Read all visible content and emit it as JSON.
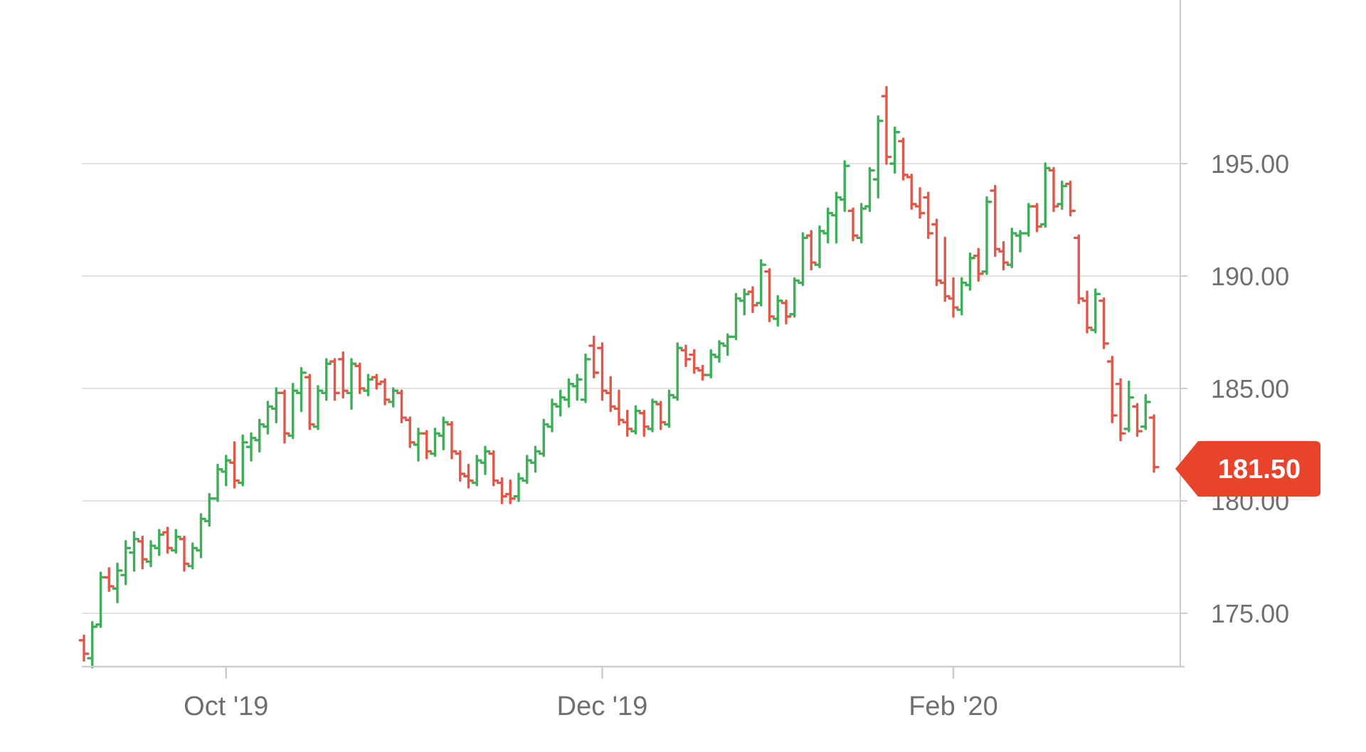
{
  "chart_data": {
    "type": "ohlc",
    "title": "",
    "description": "Daily OHLC price bar chart, Sep 2019 - Mar 2020, ending at 181.50",
    "colors": {
      "up": "#3eae59",
      "down": "#e0584a",
      "grid": "#e3e3e3",
      "axis": "#cccccc",
      "label": "#6f6f6f",
      "background": "#ffffff",
      "badge": "#e8432b",
      "badge_text": "#ffffff"
    },
    "y_axis": {
      "tick_labels": [
        "195.00",
        "190.00",
        "185.00",
        "180.00",
        "175.00"
      ],
      "tick_values": [
        195,
        190,
        185,
        180,
        175
      ],
      "visible_min": 172.5,
      "visible_max": 198.4,
      "grid": true,
      "position": "right"
    },
    "x_axis": {
      "tick_labels": [
        "Oct '19",
        "Dec '19",
        "Feb '20"
      ],
      "tick_bar_indices": [
        17,
        62,
        104
      ]
    },
    "badge": {
      "label": "181.50",
      "value": 181.5
    },
    "series": [
      {
        "name": "price",
        "bars_format": [
          "open",
          "high",
          "low",
          "close"
        ],
        "bars": [
          [
            173.8,
            174.0,
            172.9,
            173.2
          ],
          [
            173.0,
            174.6,
            172.6,
            174.4
          ],
          [
            174.5,
            176.8,
            174.4,
            176.6
          ],
          [
            176.6,
            177.0,
            176.0,
            176.2
          ],
          [
            176.1,
            177.2,
            175.5,
            176.9
          ],
          [
            176.7,
            178.2,
            176.3,
            177.9
          ],
          [
            177.7,
            178.6,
            176.9,
            178.3
          ],
          [
            178.2,
            178.4,
            177.0,
            177.4
          ],
          [
            177.3,
            178.2,
            177.1,
            178.0
          ],
          [
            177.9,
            178.7,
            177.6,
            178.5
          ],
          [
            178.6,
            178.8,
            177.7,
            177.9
          ],
          [
            177.8,
            178.7,
            177.7,
            178.4
          ],
          [
            178.3,
            178.4,
            176.9,
            177.2
          ],
          [
            177.1,
            178.1,
            177.0,
            177.9
          ],
          [
            177.8,
            179.4,
            177.5,
            179.2
          ],
          [
            179.1,
            180.3,
            178.9,
            180.1
          ],
          [
            180.1,
            181.6,
            180.0,
            181.4
          ],
          [
            181.3,
            182.0,
            180.7,
            181.8
          ],
          [
            181.7,
            182.6,
            180.6,
            180.9
          ],
          [
            180.8,
            182.9,
            180.7,
            182.6
          ],
          [
            182.4,
            183.0,
            181.8,
            182.8
          ],
          [
            182.7,
            183.6,
            182.2,
            183.4
          ],
          [
            183.3,
            184.4,
            183.0,
            184.2
          ],
          [
            184.1,
            185.0,
            183.5,
            184.8
          ],
          [
            184.8,
            184.9,
            182.6,
            183.0
          ],
          [
            182.9,
            185.2,
            182.8,
            184.9
          ],
          [
            184.8,
            185.9,
            184.0,
            185.7
          ],
          [
            185.5,
            185.6,
            183.2,
            183.4
          ],
          [
            183.3,
            185.1,
            183.2,
            184.9
          ],
          [
            184.8,
            186.3,
            184.5,
            186.1
          ],
          [
            186.2,
            186.3,
            184.5,
            184.8
          ],
          [
            186.3,
            186.6,
            184.6,
            184.9
          ],
          [
            184.8,
            186.3,
            184.1,
            186.1
          ],
          [
            186.0,
            186.1,
            184.8,
            185.0
          ],
          [
            184.9,
            185.6,
            184.7,
            185.4
          ],
          [
            185.5,
            185.6,
            185.0,
            185.2
          ],
          [
            185.3,
            185.4,
            184.3,
            184.5
          ],
          [
            184.4,
            185.0,
            184.2,
            184.9
          ],
          [
            184.8,
            184.9,
            183.5,
            183.7
          ],
          [
            183.6,
            183.7,
            182.4,
            182.6
          ],
          [
            182.5,
            183.2,
            181.8,
            183.0
          ],
          [
            183.0,
            183.1,
            181.9,
            182.2
          ],
          [
            182.1,
            183.2,
            182.0,
            183.0
          ],
          [
            182.9,
            183.7,
            182.3,
            183.5
          ],
          [
            183.4,
            183.5,
            181.9,
            182.2
          ],
          [
            182.1,
            182.2,
            180.9,
            181.2
          ],
          [
            181.1,
            181.6,
            180.6,
            180.9
          ],
          [
            180.8,
            182.0,
            180.7,
            181.8
          ],
          [
            181.7,
            182.4,
            181.2,
            182.2
          ],
          [
            182.1,
            182.2,
            180.7,
            180.9
          ],
          [
            180.8,
            181.0,
            179.9,
            180.2
          ],
          [
            180.3,
            180.9,
            179.9,
            180.1
          ],
          [
            180.2,
            181.2,
            180.0,
            181.0
          ],
          [
            180.9,
            182.0,
            180.8,
            181.8
          ],
          [
            181.7,
            182.4,
            181.3,
            182.2
          ],
          [
            182.1,
            183.6,
            182.0,
            183.4
          ],
          [
            183.3,
            184.5,
            183.1,
            184.3
          ],
          [
            184.2,
            184.9,
            183.8,
            184.6
          ],
          [
            184.5,
            185.4,
            184.2,
            185.2
          ],
          [
            185.1,
            185.6,
            184.5,
            185.4
          ],
          [
            184.5,
            186.5,
            184.4,
            186.3
          ],
          [
            186.9,
            187.3,
            185.5,
            185.7
          ],
          [
            186.8,
            187.0,
            184.5,
            184.9
          ],
          [
            184.8,
            185.5,
            184.0,
            184.2
          ],
          [
            184.1,
            184.9,
            183.4,
            183.6
          ],
          [
            183.5,
            184.0,
            182.9,
            183.2
          ],
          [
            183.1,
            184.2,
            183.0,
            184.0
          ],
          [
            183.9,
            184.0,
            182.9,
            183.3
          ],
          [
            183.2,
            184.5,
            183.1,
            184.4
          ],
          [
            184.3,
            184.4,
            183.2,
            183.5
          ],
          [
            183.4,
            184.9,
            183.3,
            184.7
          ],
          [
            184.6,
            187.0,
            184.5,
            186.8
          ],
          [
            186.7,
            186.9,
            186.0,
            186.3
          ],
          [
            186.5,
            186.7,
            185.7,
            185.9
          ],
          [
            185.8,
            186.0,
            185.4,
            185.6
          ],
          [
            185.6,
            186.7,
            185.5,
            186.5
          ],
          [
            186.4,
            187.1,
            186.2,
            187.0
          ],
          [
            186.9,
            187.4,
            186.5,
            187.3
          ],
          [
            187.3,
            189.2,
            187.2,
            189.0
          ],
          [
            188.9,
            189.4,
            188.3,
            189.2
          ],
          [
            189.3,
            189.5,
            188.4,
            188.7
          ],
          [
            188.8,
            190.7,
            188.7,
            190.5
          ],
          [
            190.2,
            190.3,
            188.0,
            188.2
          ],
          [
            188.1,
            189.1,
            187.8,
            188.9
          ],
          [
            188.8,
            188.9,
            187.9,
            188.2
          ],
          [
            188.3,
            189.9,
            188.2,
            189.8
          ],
          [
            189.7,
            191.9,
            189.6,
            191.7
          ],
          [
            191.8,
            192.0,
            190.3,
            190.6
          ],
          [
            190.5,
            192.2,
            190.4,
            192.0
          ],
          [
            191.9,
            193.0,
            191.5,
            192.8
          ],
          [
            192.7,
            193.7,
            191.5,
            193.5
          ],
          [
            193.4,
            195.1,
            192.9,
            194.9
          ],
          [
            192.9,
            193.0,
            191.6,
            191.8
          ],
          [
            191.7,
            193.2,
            191.5,
            193.0
          ],
          [
            193.1,
            194.8,
            192.9,
            194.7
          ],
          [
            194.3,
            197.1,
            193.5,
            196.9
          ],
          [
            198.0,
            198.4,
            195.0,
            195.3
          ],
          [
            195.0,
            196.6,
            194.6,
            196.4
          ],
          [
            196.0,
            196.1,
            194.3,
            194.5
          ],
          [
            194.4,
            194.5,
            193.0,
            193.2
          ],
          [
            193.1,
            193.9,
            192.6,
            192.8
          ],
          [
            193.5,
            193.7,
            191.7,
            191.9
          ],
          [
            192.3,
            192.5,
            189.6,
            189.8
          ],
          [
            189.7,
            191.7,
            188.9,
            189.1
          ],
          [
            189.0,
            189.9,
            188.2,
            188.6
          ],
          [
            188.5,
            189.9,
            188.3,
            189.7
          ],
          [
            189.6,
            191.0,
            189.4,
            190.8
          ],
          [
            190.9,
            191.2,
            189.8,
            190.1
          ],
          [
            190.2,
            193.5,
            190.1,
            193.3
          ],
          [
            193.8,
            194.0,
            190.9,
            191.2
          ],
          [
            191.1,
            191.5,
            190.3,
            190.6
          ],
          [
            190.5,
            192.1,
            190.4,
            191.9
          ],
          [
            191.8,
            192.0,
            191.1,
            191.9
          ],
          [
            191.9,
            193.2,
            191.8,
            193.1
          ],
          [
            193.1,
            193.2,
            192.0,
            192.2
          ],
          [
            192.3,
            195.0,
            192.2,
            194.8
          ],
          [
            194.7,
            194.8,
            192.9,
            193.1
          ],
          [
            193.2,
            194.2,
            193.0,
            194.0
          ],
          [
            194.1,
            194.2,
            192.7,
            192.9
          ],
          [
            191.7,
            191.8,
            188.8,
            189.0
          ],
          [
            188.9,
            189.3,
            187.5,
            187.7
          ],
          [
            187.6,
            189.4,
            187.5,
            189.2
          ],
          [
            188.9,
            189.0,
            186.8,
            187.0
          ],
          [
            186.2,
            186.4,
            183.5,
            183.8
          ],
          [
            185.2,
            185.4,
            182.7,
            183.0
          ],
          [
            183.2,
            185.3,
            183.1,
            184.6
          ],
          [
            184.2,
            184.3,
            182.9,
            183.1
          ],
          [
            183.3,
            184.7,
            183.2,
            184.4
          ],
          [
            183.7,
            183.8,
            181.3,
            181.5
          ]
        ]
      }
    ]
  }
}
